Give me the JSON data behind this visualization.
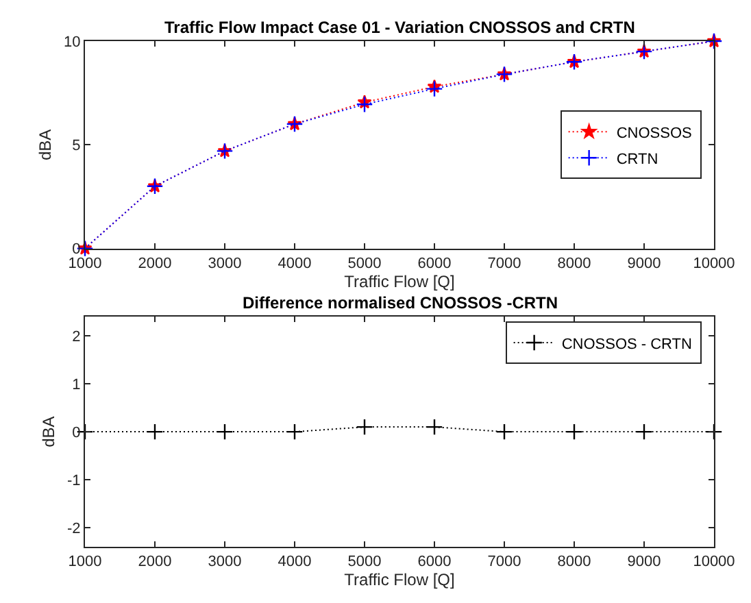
{
  "chart_data": [
    {
      "type": "line",
      "title": "Traffic Flow Impact Case 01 - Variation CNOSSOS and CRTN",
      "xlabel": "Traffic Flow [Q]",
      "ylabel": "dBA",
      "x": [
        1000,
        2000,
        3000,
        4000,
        5000,
        6000,
        7000,
        8000,
        9000,
        10000
      ],
      "series": [
        {
          "name": "CNOSSOS",
          "color": "#ff0000",
          "marker": "star",
          "values": [
            0,
            3.0,
            4.7,
            6.0,
            7.05,
            7.8,
            8.4,
            9.0,
            9.5,
            10
          ]
        },
        {
          "name": "CRTN",
          "color": "#0000ff",
          "marker": "cross",
          "values": [
            0,
            3.0,
            4.7,
            6.0,
            6.95,
            7.7,
            8.4,
            9.0,
            9.5,
            10
          ]
        }
      ],
      "xlim": [
        1000,
        10000
      ],
      "xticks": [
        1000,
        2000,
        3000,
        4000,
        5000,
        6000,
        7000,
        8000,
        9000,
        10000
      ],
      "ylim": [
        0,
        10
      ],
      "yticks": [
        0,
        5,
        10
      ],
      "legend": "right",
      "line_style": "dotted"
    },
    {
      "type": "line",
      "title": "Difference normalised CNOSSOS -CRTN",
      "xlabel": "Traffic Flow [Q]",
      "ylabel": "dBA",
      "x": [
        1000,
        2000,
        3000,
        4000,
        5000,
        6000,
        7000,
        8000,
        9000,
        10000
      ],
      "series": [
        {
          "name": "CNOSSOS - CRTN",
          "color": "#000000",
          "marker": "cross",
          "values": [
            0,
            0,
            0,
            0,
            0.1,
            0.1,
            0,
            0,
            0,
            0
          ]
        }
      ],
      "xlim": [
        1000,
        10000
      ],
      "xticks": [
        1000,
        2000,
        3000,
        4000,
        5000,
        6000,
        7000,
        8000,
        9000,
        10000
      ],
      "ylim": [
        -2.4,
        2.4
      ],
      "yticks": [
        -2,
        -1,
        0,
        1,
        2
      ],
      "legend": "top right",
      "line_style": "dotted"
    }
  ]
}
